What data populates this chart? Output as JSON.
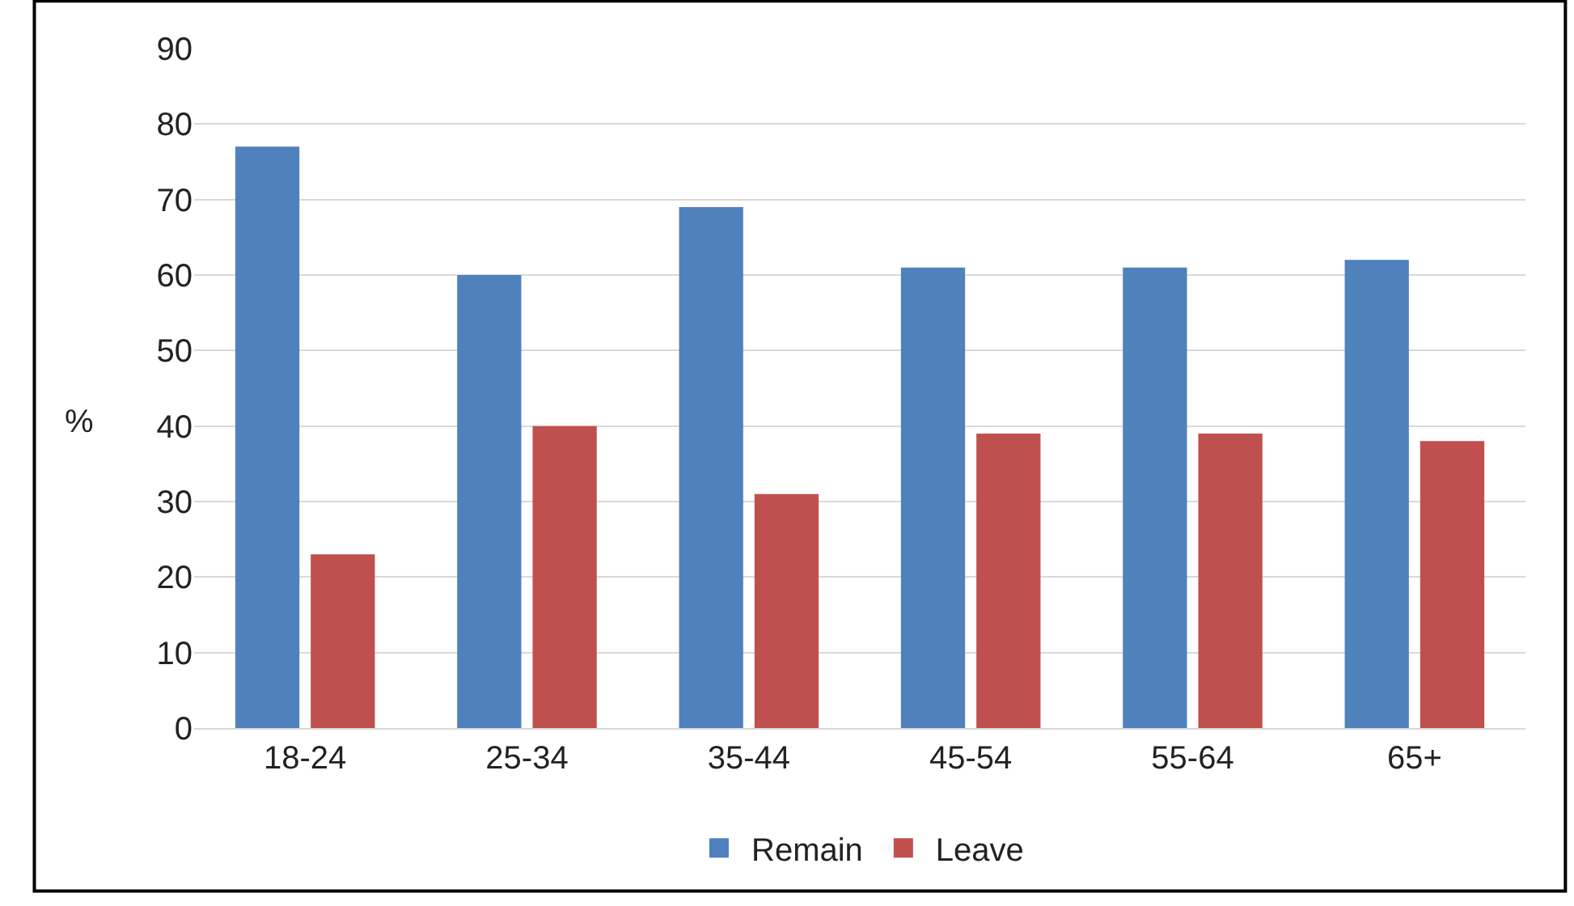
{
  "chart_data": {
    "type": "bar",
    "ylabel": "%",
    "categories": [
      "18-24",
      "25-34",
      "35-44",
      "45-54",
      "55-64",
      "65+"
    ],
    "series": [
      {
        "name": "Remain",
        "color": "#4f81bd",
        "values": [
          77,
          60,
          69,
          61,
          61,
          62
        ]
      },
      {
        "name": "Leave",
        "color": "#c0504d",
        "values": [
          23,
          40,
          31,
          39,
          39,
          38
        ]
      }
    ],
    "ylim": [
      0,
      90
    ],
    "yticks": [
      0,
      10,
      20,
      30,
      40,
      50,
      60,
      70,
      80,
      90
    ],
    "grid": "y",
    "legend": "bottom"
  }
}
